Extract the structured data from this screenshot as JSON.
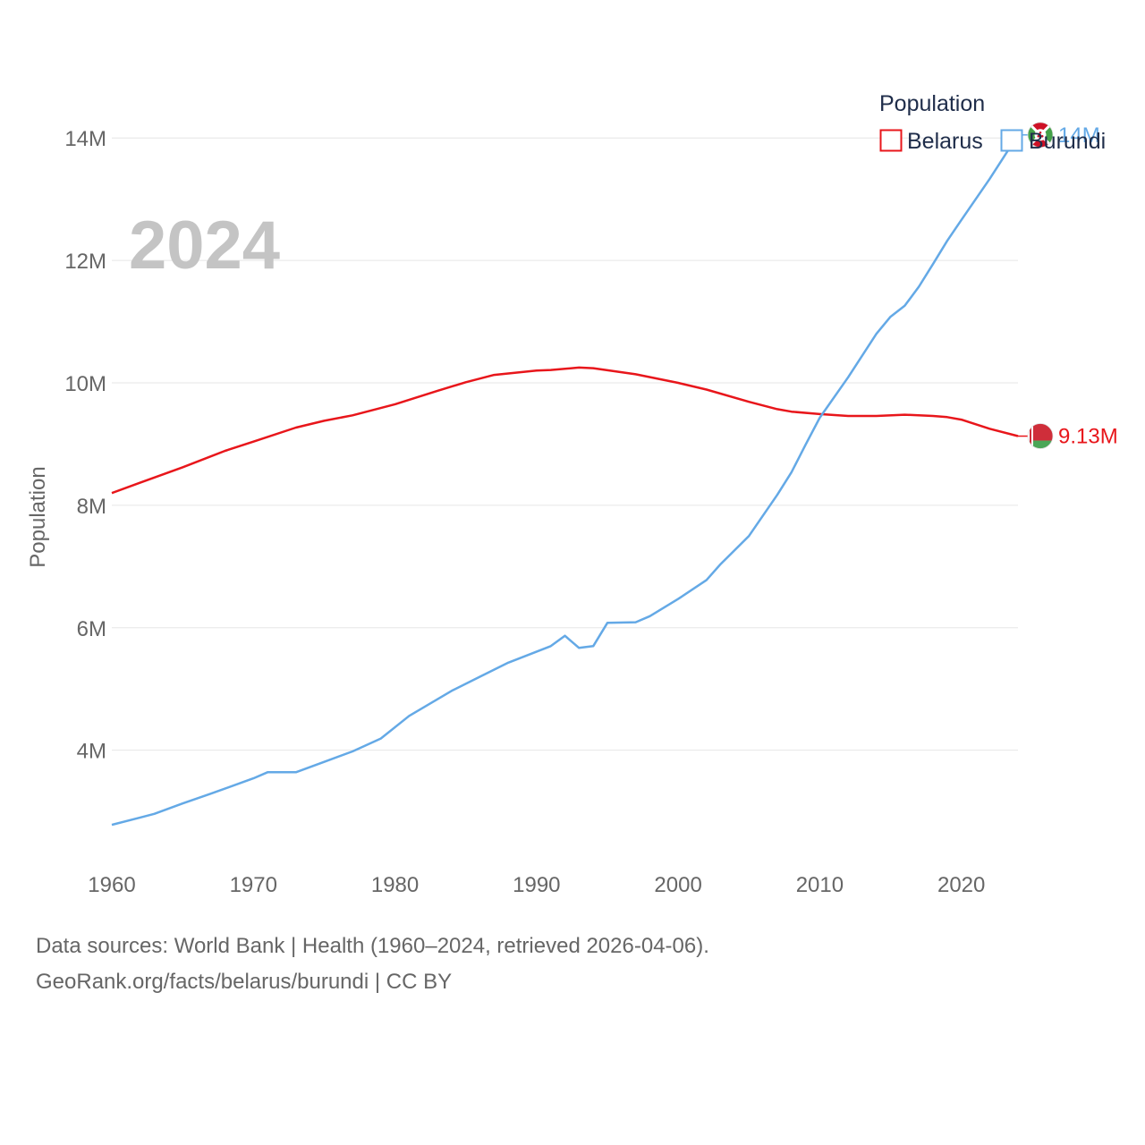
{
  "chart_data": {
    "type": "line",
    "title": "",
    "year_label": "2024",
    "ylabel": "Population",
    "xlabel": "",
    "xlim": [
      1960,
      2024
    ],
    "ylim": [
      2300000,
      14500000
    ],
    "x_ticks": [
      1960,
      1970,
      1980,
      1990,
      2000,
      2010,
      2020
    ],
    "x_tick_labels": [
      "1960",
      "1970",
      "1980",
      "1990",
      "2000",
      "2010",
      "2020"
    ],
    "y_ticks": [
      4000000,
      6000000,
      8000000,
      10000000,
      12000000,
      14000000
    ],
    "y_tick_labels": [
      "4M",
      "6M",
      "8M",
      "10M",
      "12M",
      "14M"
    ],
    "grid": true,
    "legend": {
      "title": "Population",
      "position": "top-right"
    },
    "series": [
      {
        "name": "Belarus",
        "color": "#e8161b",
        "end_label": "9.13M",
        "flag": "belarus-flag",
        "points": [
          [
            1960,
            8200000
          ],
          [
            1962,
            8370000
          ],
          [
            1965,
            8620000
          ],
          [
            1968,
            8890000
          ],
          [
            1970,
            9040000
          ],
          [
            1973,
            9270000
          ],
          [
            1975,
            9380000
          ],
          [
            1977,
            9470000
          ],
          [
            1980,
            9650000
          ],
          [
            1983,
            9870000
          ],
          [
            1985,
            10010000
          ],
          [
            1987,
            10130000
          ],
          [
            1990,
            10200000
          ],
          [
            1991,
            10210000
          ],
          [
            1993,
            10250000
          ],
          [
            1994,
            10240000
          ],
          [
            1997,
            10140000
          ],
          [
            2000,
            10000000
          ],
          [
            2002,
            9890000
          ],
          [
            2005,
            9690000
          ],
          [
            2007,
            9570000
          ],
          [
            2008,
            9530000
          ],
          [
            2010,
            9490000
          ],
          [
            2012,
            9460000
          ],
          [
            2014,
            9460000
          ],
          [
            2016,
            9480000
          ],
          [
            2018,
            9460000
          ],
          [
            2019,
            9440000
          ],
          [
            2020,
            9400000
          ],
          [
            2022,
            9250000
          ],
          [
            2024,
            9130000
          ]
        ]
      },
      {
        "name": "Burundi",
        "color": "#64a9e6",
        "end_label": "14M",
        "flag": "burundi-flag",
        "points": [
          [
            1960,
            2780000
          ],
          [
            1962,
            2900000
          ],
          [
            1963,
            2960000
          ],
          [
            1965,
            3130000
          ],
          [
            1967,
            3290000
          ],
          [
            1970,
            3540000
          ],
          [
            1971,
            3640000
          ],
          [
            1973,
            3640000
          ],
          [
            1975,
            3810000
          ],
          [
            1977,
            3980000
          ],
          [
            1979,
            4190000
          ],
          [
            1981,
            4560000
          ],
          [
            1984,
            4970000
          ],
          [
            1986,
            5200000
          ],
          [
            1988,
            5430000
          ],
          [
            1991,
            5700000
          ],
          [
            1992,
            5870000
          ],
          [
            1993,
            5670000
          ],
          [
            1994,
            5700000
          ],
          [
            1995,
            6080000
          ],
          [
            1997,
            6090000
          ],
          [
            1998,
            6190000
          ],
          [
            2000,
            6470000
          ],
          [
            2002,
            6780000
          ],
          [
            2003,
            7040000
          ],
          [
            2005,
            7500000
          ],
          [
            2007,
            8170000
          ],
          [
            2008,
            8540000
          ],
          [
            2009,
            8990000
          ],
          [
            2010,
            9430000
          ],
          [
            2012,
            10090000
          ],
          [
            2014,
            10800000
          ],
          [
            2015,
            11080000
          ],
          [
            2016,
            11260000
          ],
          [
            2017,
            11570000
          ],
          [
            2018,
            11940000
          ],
          [
            2019,
            12320000
          ],
          [
            2020,
            12660000
          ],
          [
            2022,
            13330000
          ],
          [
            2023,
            13690000
          ],
          [
            2024,
            14050000
          ]
        ]
      }
    ]
  },
  "footer": {
    "source_line": "Data sources: World Bank | Health (1960–2024, retrieved 2026-04-06).",
    "credit_line": "GeoRank.org/facts/belarus/burundi | CC BY"
  }
}
